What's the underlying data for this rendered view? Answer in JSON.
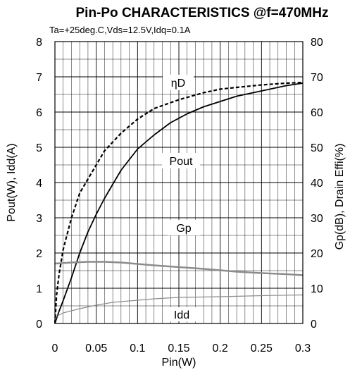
{
  "chart_data": {
    "type": "line",
    "title": "Pin-Po CHARACTERISTICS @f=470MHz",
    "subtitle": "Ta=+25deg.C,Vds=12.5V,Idq=0.1A",
    "xlabel": "Pin(W)",
    "ylabel_left": "Pout(W), Idd(A)",
    "ylabel_right": "Gp(dB), Drain Effi(%)",
    "xlim": [
      0,
      0.3
    ],
    "ylim_left": [
      0,
      8
    ],
    "ylim_right": [
      0,
      80
    ],
    "grid": true,
    "x_ticks": [
      "0",
      "0.05",
      "0.1",
      "0.15",
      "0.2",
      "0.25",
      "0.3"
    ],
    "y_left_ticks": [
      "0",
      "1",
      "2",
      "3",
      "4",
      "5",
      "6",
      "7",
      "8"
    ],
    "y_right_ticks": [
      "0",
      "10",
      "20",
      "30",
      "40",
      "50",
      "60",
      "70",
      "80"
    ],
    "series": [
      {
        "name": "ηD",
        "axis": "right",
        "color": "#000000",
        "style": "dashed",
        "x": [
          0,
          0.002,
          0.005,
          0.01,
          0.02,
          0.03,
          0.04,
          0.05,
          0.06,
          0.08,
          0.1,
          0.12,
          0.15,
          0.18,
          0.2,
          0.22,
          0.25,
          0.28,
          0.3
        ],
        "y": [
          0,
          8,
          14,
          21,
          30,
          37,
          41,
          45,
          49,
          54,
          58,
          61,
          63.5,
          65.5,
          66.5,
          67,
          67.7,
          68.2,
          68.4
        ]
      },
      {
        "name": "Pout",
        "axis": "left",
        "color": "#000000",
        "style": "solid",
        "x": [
          0,
          0.005,
          0.01,
          0.02,
          0.03,
          0.04,
          0.05,
          0.06,
          0.07,
          0.08,
          0.09,
          0.1,
          0.12,
          0.14,
          0.16,
          0.18,
          0.2,
          0.22,
          0.24,
          0.26,
          0.28,
          0.3
        ],
        "y": [
          0,
          0.35,
          0.65,
          1.3,
          2.0,
          2.6,
          3.1,
          3.55,
          3.95,
          4.35,
          4.65,
          4.95,
          5.35,
          5.7,
          5.95,
          6.15,
          6.3,
          6.45,
          6.55,
          6.65,
          6.75,
          6.82
        ]
      },
      {
        "name": "Gp",
        "axis": "right",
        "color": "#8c8c8c",
        "style": "solid",
        "x": [
          0,
          0.02,
          0.04,
          0.06,
          0.08,
          0.1,
          0.12,
          0.15,
          0.18,
          0.2,
          0.22,
          0.25,
          0.28,
          0.3
        ],
        "y": [
          17.0,
          17.3,
          17.5,
          17.5,
          17.3,
          16.9,
          16.5,
          16.0,
          15.5,
          15.1,
          14.7,
          14.3,
          14.0,
          13.7
        ]
      },
      {
        "name": "Idd",
        "axis": "left",
        "color": "#8c8c8c",
        "style": "solid",
        "x": [
          0,
          0.002,
          0.01,
          0.03,
          0.05,
          0.07,
          0.1,
          0.12,
          0.15,
          0.2,
          0.25,
          0.3
        ],
        "y": [
          0.1,
          0.2,
          0.3,
          0.42,
          0.52,
          0.6,
          0.66,
          0.7,
          0.74,
          0.76,
          0.79,
          0.81
        ]
      }
    ],
    "curve_labels": [
      "ηD",
      "Pout",
      "Gp",
      "Idd"
    ],
    "minor_grid": {
      "x_per_major": 5,
      "y_per_major": 2
    }
  }
}
